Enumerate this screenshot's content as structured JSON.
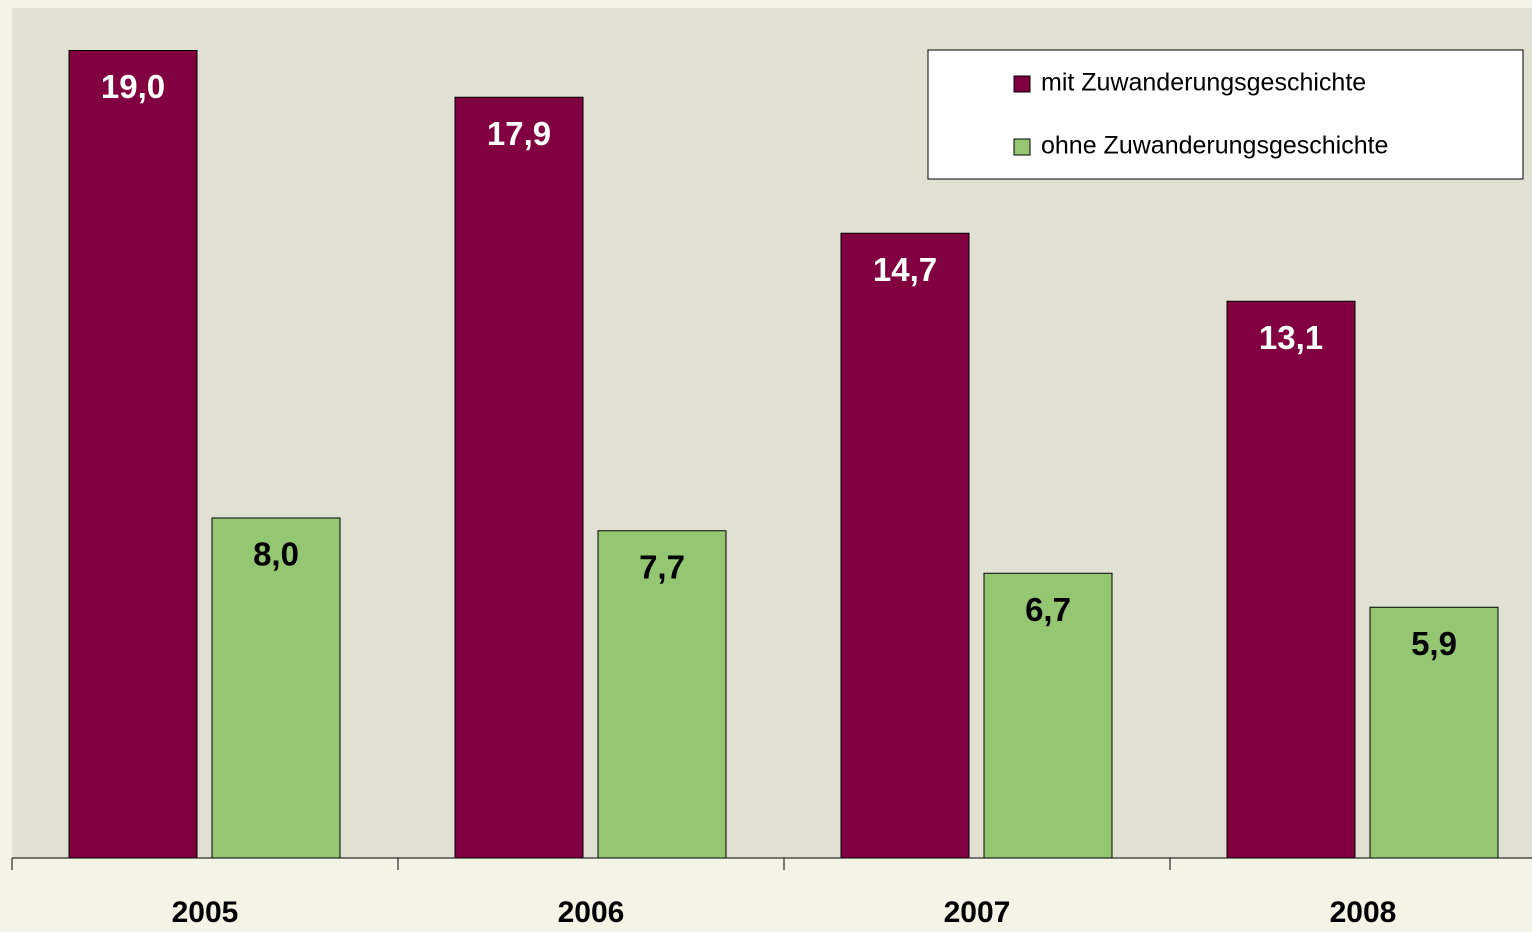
{
  "chart_data": {
    "type": "bar",
    "categories": [
      "2005",
      "2006",
      "2007",
      "2008"
    ],
    "series": [
      {
        "name": "mit Zuwanderungsgeschichte",
        "color": "#800040",
        "values": [
          19.0,
          17.9,
          14.7,
          13.1
        ],
        "value_labels": [
          "19,0",
          "17,9",
          "14,7",
          "13,1"
        ],
        "label_color": "#ffffff"
      },
      {
        "name": "ohne Zuwanderungsgeschichte",
        "color": "#95c672",
        "values": [
          8.0,
          7.7,
          6.7,
          5.9
        ],
        "value_labels": [
          "8,0",
          "7,7",
          "6,7",
          "5,9"
        ],
        "label_color": "#000000"
      }
    ],
    "ylim": [
      0,
      20
    ],
    "legend": "top-right"
  }
}
